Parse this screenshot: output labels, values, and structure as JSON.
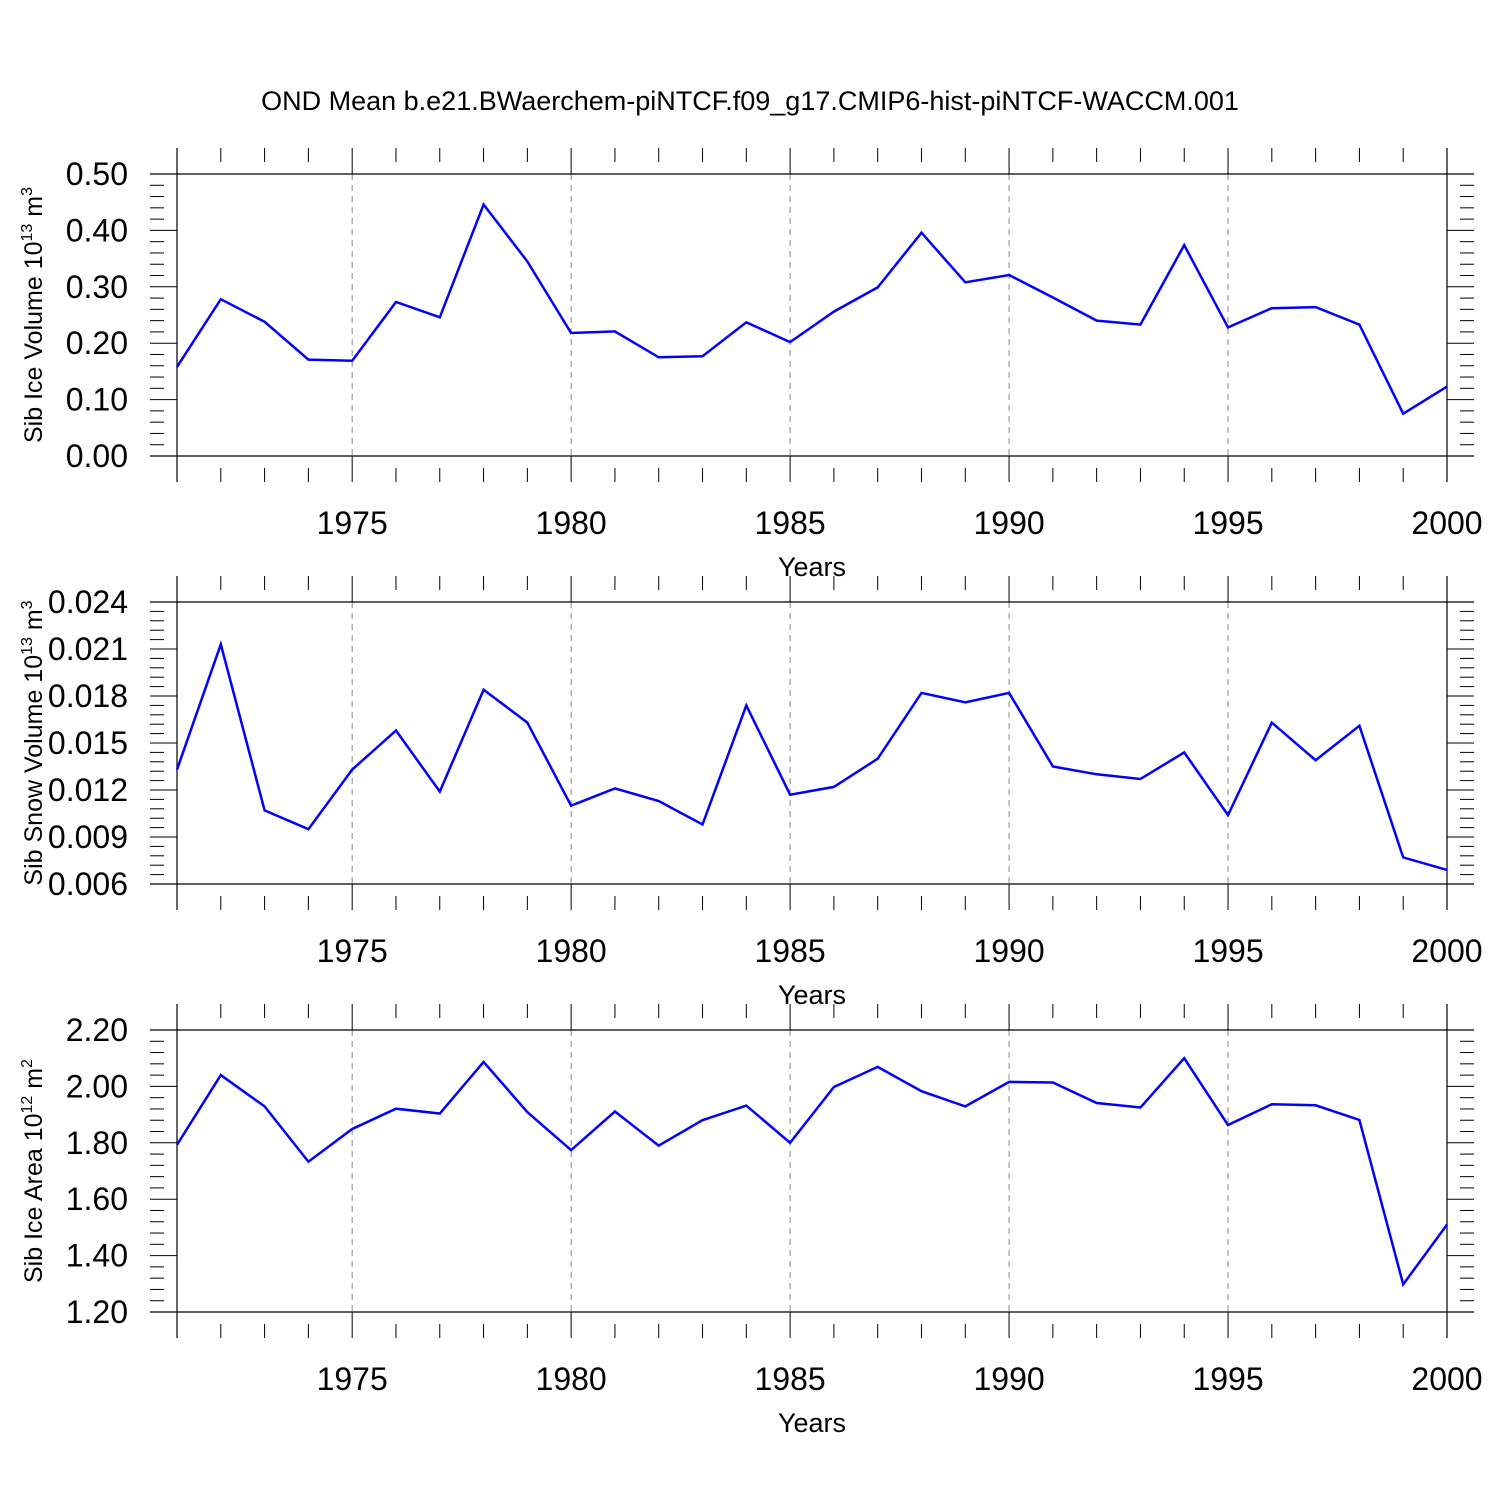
{
  "title": "OND Mean b.e21.BWaerchem-piNTCF.f09_g17.CMIP6-hist-piNTCF-WACCM.001",
  "colors": {
    "line": "#0000ff",
    "axis": "#000000",
    "grid": "#888888"
  },
  "chart_data": [
    {
      "type": "line",
      "xlabel": "Years",
      "ylabel_text": "Sib Ice Volume 10",
      "ylabel_sup": "13",
      "ylabel_unit": " m",
      "ylabel_unit_sup": "3",
      "xlim": [
        1971,
        2000
      ],
      "ylim": [
        0.0,
        0.5
      ],
      "xticks": [
        "1975",
        "1980",
        "1985",
        "1990",
        "1995",
        "2000"
      ],
      "yticks": [
        "0.00",
        "0.10",
        "0.20",
        "0.30",
        "0.40",
        "0.50"
      ],
      "grid": "vertical dashed at major x ticks",
      "x": [
        1971,
        1972,
        1973,
        1974,
        1975,
        1976,
        1977,
        1978,
        1979,
        1980,
        1981,
        1982,
        1983,
        1984,
        1985,
        1986,
        1987,
        1988,
        1989,
        1990,
        1991,
        1992,
        1993,
        1994,
        1995,
        1996,
        1997,
        1998,
        1999,
        2000
      ],
      "y": [
        0.158,
        0.278,
        0.238,
        0.171,
        0.169,
        0.273,
        0.246,
        0.446,
        0.345,
        0.218,
        0.221,
        0.175,
        0.177,
        0.237,
        0.202,
        0.256,
        0.299,
        0.396,
        0.308,
        0.321,
        0.281,
        0.24,
        0.233,
        0.374,
        0.228,
        0.262,
        0.264,
        0.233,
        0.075,
        0.123
      ]
    },
    {
      "type": "line",
      "xlabel": "Years",
      "ylabel_text": "Sib Snow Volume 10",
      "ylabel_sup": "13",
      "ylabel_unit": " m",
      "ylabel_unit_sup": "3",
      "xlim": [
        1971,
        2000
      ],
      "ylim": [
        0.006,
        0.024
      ],
      "xticks": [
        "1975",
        "1980",
        "1985",
        "1990",
        "1995",
        "2000"
      ],
      "yticks": [
        "0.006",
        "0.009",
        "0.012",
        "0.015",
        "0.018",
        "0.021",
        "0.024"
      ],
      "grid": "vertical dashed at major x ticks",
      "x": [
        1971,
        1972,
        1973,
        1974,
        1975,
        1976,
        1977,
        1978,
        1979,
        1980,
        1981,
        1982,
        1983,
        1984,
        1985,
        1986,
        1987,
        1988,
        1989,
        1990,
        1991,
        1992,
        1993,
        1994,
        1995,
        1996,
        1997,
        1998,
        1999,
        2000
      ],
      "y": [
        0.0133,
        0.0213,
        0.0107,
        0.0095,
        0.0133,
        0.0158,
        0.0119,
        0.0184,
        0.0163,
        0.011,
        0.0121,
        0.0113,
        0.0098,
        0.0174,
        0.0117,
        0.0122,
        0.014,
        0.0182,
        0.0176,
        0.0182,
        0.0135,
        0.013,
        0.0127,
        0.0144,
        0.0104,
        0.0163,
        0.0139,
        0.0161,
        0.0077,
        0.0069
      ]
    },
    {
      "type": "line",
      "xlabel": "Years",
      "ylabel_text": "Sib Ice Area 10",
      "ylabel_sup": "12",
      "ylabel_unit": " m",
      "ylabel_unit_sup": "2",
      "xlim": [
        1971,
        2000
      ],
      "ylim": [
        1.2,
        2.2
      ],
      "xticks": [
        "1975",
        "1980",
        "1985",
        "1990",
        "1995",
        "2000"
      ],
      "yticks": [
        "1.20",
        "1.40",
        "1.60",
        "1.80",
        "2.00",
        "2.20"
      ],
      "grid": "vertical dashed at major x ticks",
      "x": [
        1971,
        1972,
        1973,
        1974,
        1975,
        1976,
        1977,
        1978,
        1979,
        1980,
        1981,
        1982,
        1983,
        1984,
        1985,
        1986,
        1987,
        1988,
        1989,
        1990,
        1991,
        1992,
        1993,
        1994,
        1995,
        1996,
        1997,
        1998,
        1999,
        2000
      ],
      "y": [
        1.793,
        2.04,
        1.929,
        1.733,
        1.849,
        1.921,
        1.904,
        2.087,
        1.909,
        1.774,
        1.911,
        1.79,
        1.88,
        1.932,
        1.8,
        1.998,
        2.069,
        1.983,
        1.929,
        2.016,
        2.014,
        1.941,
        1.925,
        2.1,
        1.863,
        1.937,
        1.933,
        1.881,
        1.298,
        1.51
      ]
    }
  ]
}
